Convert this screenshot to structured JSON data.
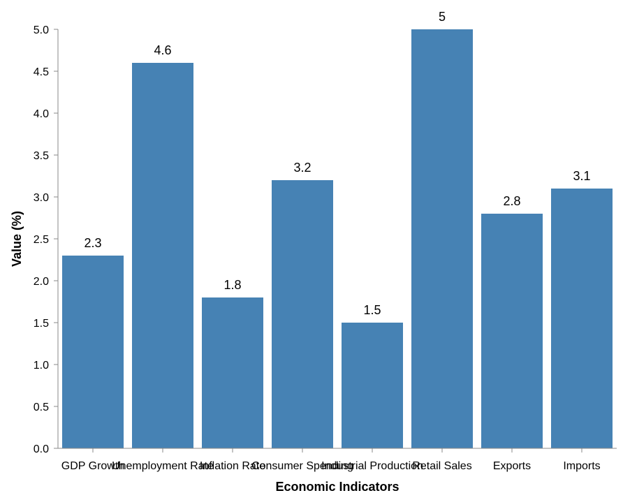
{
  "chart_data": {
    "type": "bar",
    "title": "",
    "xlabel": "Economic Indicators",
    "ylabel": "Value (%)",
    "categories": [
      "GDP Growth",
      "Unemployment Rate",
      "Inflation Rate",
      "Consumer Spending",
      "Industrial Production",
      "Retail Sales",
      "Exports",
      "Imports"
    ],
    "values": [
      2.3,
      4.6,
      1.8,
      3.2,
      1.5,
      5,
      2.8,
      3.1
    ],
    "value_labels": [
      "2.3",
      "4.6",
      "1.8",
      "3.2",
      "1.5",
      "5",
      "2.8",
      "3.1"
    ],
    "ylim": [
      0,
      5
    ],
    "yticks": [
      "0.0",
      "0.5",
      "1.0",
      "1.5",
      "2.0",
      "2.5",
      "3.0",
      "3.5",
      "4.0",
      "4.5",
      "5.0"
    ],
    "bar_color": "#4682b4",
    "grid": false,
    "legend": "none"
  }
}
